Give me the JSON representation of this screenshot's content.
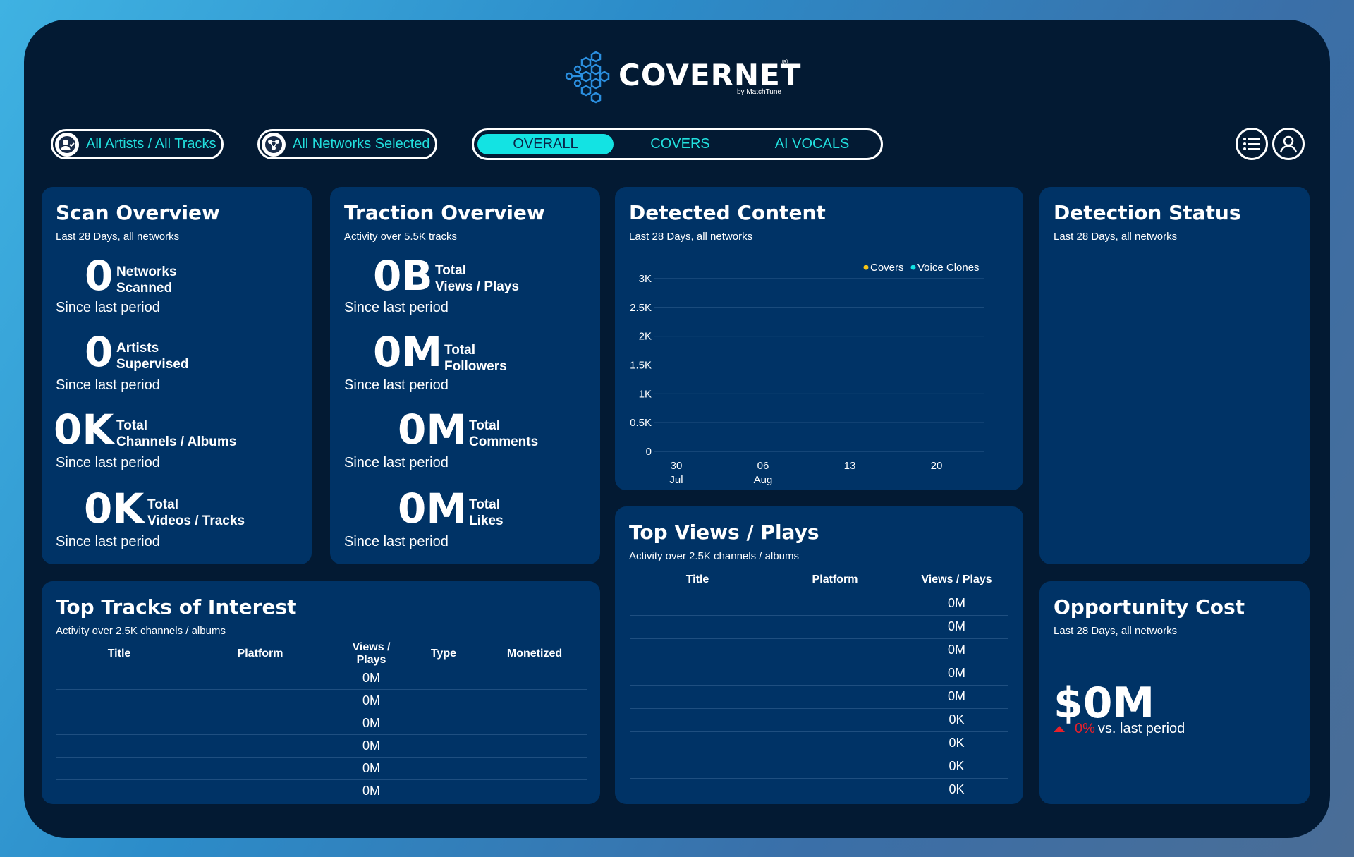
{
  "header": {
    "brand": "COVERNET",
    "registered": "®",
    "byline": "by MatchTune",
    "filter_artists": "All Artists / All Tracks",
    "filter_networks": "All Networks Selected",
    "tabs": [
      "OVERALL",
      "COVERS",
      "AI VOCALS"
    ],
    "active_tab": "OVERALL"
  },
  "scan_overview": {
    "title": "Scan Overview",
    "subtitle": "Last 28 Days, all networks",
    "metrics": [
      {
        "value": "0",
        "label1": "Networks",
        "label2": "Scanned",
        "since": "Since last period"
      },
      {
        "value": "0",
        "label1": "Artists",
        "label2": "Supervised",
        "since": "Since last period"
      },
      {
        "value": "0K",
        "label1": "Total",
        "label2": "Channels / Albums",
        "since": "Since last period"
      },
      {
        "value": "0K",
        "label1": "Total",
        "label2": "Videos / Tracks",
        "since": "Since last period"
      }
    ]
  },
  "traction_overview": {
    "title": "Traction Overview",
    "subtitle": "Activity over 5.5K tracks",
    "metrics": [
      {
        "value": "0B",
        "label1": "Total",
        "label2": "Views / Plays",
        "since": "Since last period"
      },
      {
        "value": "0M",
        "label1": "Total",
        "label2": "Followers",
        "since": "Since last period"
      },
      {
        "value": "0M",
        "label1": "Total",
        "label2": "Comments",
        "since": "Since last period"
      },
      {
        "value": "0M",
        "label1": "Total",
        "label2": "Likes",
        "since": "Since last period"
      }
    ]
  },
  "detected_content": {
    "title": "Detected Content",
    "subtitle": "Last 28 Days, all networks",
    "chart_data": {
      "type": "line",
      "title": "",
      "xlabel": "",
      "ylabel": "",
      "y_ticks": [
        "3K",
        "2.5K",
        "2K",
        "1.5K",
        "1K",
        "0.5K",
        "0"
      ],
      "ylim": [
        0,
        3000
      ],
      "x_ticks": [
        {
          "top": "30",
          "bottom": "Jul"
        },
        {
          "top": "06",
          "bottom": "Aug"
        },
        {
          "top": "13",
          "bottom": ""
        },
        {
          "top": "20",
          "bottom": ""
        }
      ],
      "legend_position": "top-right",
      "series": [
        {
          "name": "Covers",
          "color": "#f5c518",
          "values": []
        },
        {
          "name": "Voice Clones",
          "color": "#13e3e3",
          "values": []
        }
      ],
      "grid": true
    }
  },
  "detection_status": {
    "title": "Detection Status",
    "subtitle": "Last 28 Days, all networks"
  },
  "top_tracks": {
    "title": "Top Tracks of Interest",
    "subtitle": "Activity over 2.5K channels / albums",
    "columns": [
      "Title",
      "Platform",
      "Views / Plays",
      "Type",
      "Monetized"
    ],
    "rows": [
      [
        "",
        "",
        "0M",
        "",
        ""
      ],
      [
        "",
        "",
        "0M",
        "",
        ""
      ],
      [
        "",
        "",
        "0M",
        "",
        ""
      ],
      [
        "",
        "",
        "0M",
        "",
        ""
      ],
      [
        "",
        "",
        "0M",
        "",
        ""
      ],
      [
        "",
        "",
        "0M",
        "",
        ""
      ]
    ]
  },
  "top_views": {
    "title": "Top Views / Plays",
    "subtitle": "Activity over 2.5K channels / albums",
    "columns": [
      "Title",
      "Platform",
      "Views / Plays"
    ],
    "rows": [
      [
        "",
        "",
        "0M"
      ],
      [
        "",
        "",
        "0M"
      ],
      [
        "",
        "",
        "0M"
      ],
      [
        "",
        "",
        "0M"
      ],
      [
        "",
        "",
        "0M"
      ],
      [
        "",
        "",
        "0K"
      ],
      [
        "",
        "",
        "0K"
      ],
      [
        "",
        "",
        "0K"
      ],
      [
        "",
        "",
        "0K"
      ]
    ]
  },
  "opportunity_cost": {
    "title": "Opportunity Cost",
    "subtitle": "Last 28 Days, all networks",
    "value": "$0M",
    "change": "0%",
    "change_suffix": "vs. last period",
    "change_color": "#e8202a"
  }
}
